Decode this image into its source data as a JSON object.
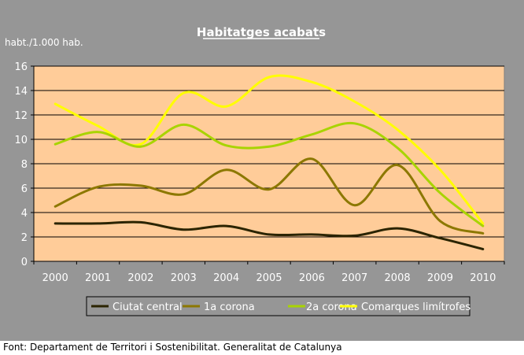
{
  "chart_data": {
    "type": "line",
    "title": "Habitatges acabats",
    "ylabel": "habt./1.000 hab.",
    "xlabel": "",
    "categories": [
      "2000",
      "2001",
      "2002",
      "2003",
      "2004",
      "2005",
      "2006",
      "2007",
      "2008",
      "2009",
      "2010"
    ],
    "ylim": [
      0,
      16
    ],
    "yticks": [
      0,
      2,
      4,
      6,
      8,
      10,
      12,
      14,
      16
    ],
    "grid": true,
    "legend_position": "bottom",
    "series": [
      {
        "name": "Ciutat central",
        "color": "#2b2400",
        "values": [
          3.1,
          3.1,
          3.2,
          2.6,
          2.9,
          2.2,
          2.2,
          2.1,
          2.7,
          1.9,
          1.0
        ]
      },
      {
        "name": "1a corona",
        "color": "#8c7800",
        "values": [
          4.5,
          6.1,
          6.2,
          5.5,
          7.5,
          5.9,
          8.4,
          4.6,
          7.9,
          3.3,
          2.3
        ]
      },
      {
        "name": "2a corona",
        "color": "#a8d400",
        "values": [
          9.6,
          10.6,
          9.4,
          11.2,
          9.5,
          9.4,
          10.4,
          11.3,
          9.3,
          5.6,
          2.9
        ]
      },
      {
        "name": "Comarques limítrofes",
        "color": "#ffff00",
        "values": [
          12.9,
          11.1,
          9.6,
          13.8,
          12.7,
          15.1,
          14.7,
          13.1,
          10.8,
          7.5,
          3.1
        ]
      }
    ]
  },
  "footer": {
    "source": "Font: Departament de Territori i Sostenibilitat. Generalitat de Catalunya"
  }
}
